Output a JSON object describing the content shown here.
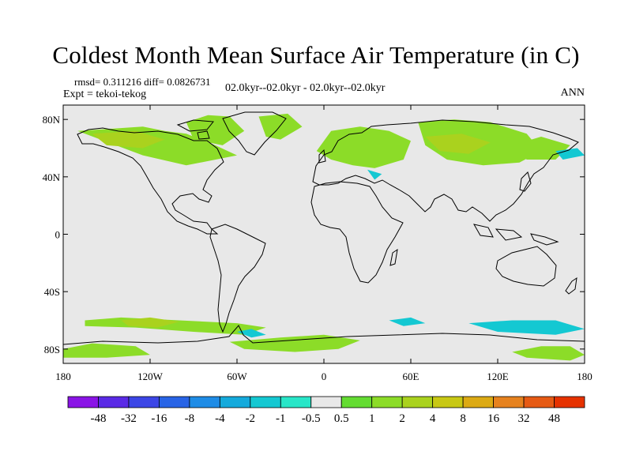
{
  "title": "Coldest Month Mean Surface Air Temperature (in C)",
  "stats": {
    "rmsd": "rmsd= 0.311216 diff= 0.0826731"
  },
  "expt": "Expt = tekoi-tekog",
  "period": "02.0kyr--02.0kyr - 02.0kyr--02.0kyr",
  "season": "ANN",
  "map": {
    "projection": "cylindrical-equidistant",
    "lon_range": [
      -180,
      180
    ],
    "lat_range": [
      -90,
      90
    ],
    "background_color": "#e8e8e8",
    "y_tick_labels": [
      {
        "lat": 80,
        "label": "80N"
      },
      {
        "lat": 40,
        "label": "40N"
      },
      {
        "lat": 0,
        "label": "0"
      },
      {
        "lat": -40,
        "label": "40S"
      },
      {
        "lat": -80,
        "label": "80S"
      }
    ],
    "x_tick_labels": [
      {
        "lon": -180,
        "label": "180"
      },
      {
        "lon": -120,
        "label": "120W"
      },
      {
        "lon": -60,
        "label": "60W"
      },
      {
        "lon": 0,
        "label": "0"
      },
      {
        "lon": 60,
        "label": "60E"
      },
      {
        "lon": 120,
        "label": "120E"
      },
      {
        "lon": 180,
        "label": "180"
      }
    ],
    "anomaly_regions": [
      {
        "level": "1",
        "lon": [
          -170,
          -125,
          -110,
          -95,
          -75,
          -60,
          -95,
          -125
        ],
        "lat": [
          72,
          75,
          72,
          70,
          62,
          55,
          48,
          55
        ]
      },
      {
        "level": "1",
        "lon": [
          -95,
          -80,
          -65,
          -55,
          -70,
          -90
        ],
        "lat": [
          78,
          83,
          82,
          72,
          62,
          66
        ]
      },
      {
        "level": "1",
        "lon": [
          -45,
          -25,
          -15,
          -30,
          -40
        ],
        "lat": [
          82,
          84,
          75,
          66,
          68
        ]
      },
      {
        "level": "1",
        "lon": [
          5,
          25,
          45,
          60,
          55,
          35,
          20,
          5,
          -5
        ],
        "lat": [
          72,
          75,
          72,
          65,
          52,
          46,
          48,
          52,
          58
        ]
      },
      {
        "level": "1",
        "lon": [
          65,
          90,
          115,
          140,
          150,
          135,
          110,
          85,
          70
        ],
        "lat": [
          78,
          80,
          78,
          70,
          58,
          50,
          48,
          52,
          62
        ]
      },
      {
        "level": "1",
        "lon": [
          130,
          150,
          170,
          160,
          140
        ],
        "lat": [
          62,
          68,
          62,
          52,
          52
        ]
      },
      {
        "level": "1",
        "lon": [
          -165,
          -140,
          -100,
          -60,
          -40,
          -55,
          -90,
          -130,
          -165
        ],
        "lat": [
          -60,
          -58,
          -60,
          -62,
          -65,
          -70,
          -68,
          -65,
          -64
        ]
      },
      {
        "level": "1",
        "lon": [
          -65,
          -30,
          0,
          25,
          10,
          -20,
          -55
        ],
        "lat": [
          -75,
          -72,
          -70,
          -74,
          -80,
          -82,
          -80
        ]
      },
      {
        "level": "1",
        "lon": [
          130,
          150,
          170,
          180,
          170,
          140
        ],
        "lat": [
          -82,
          -78,
          -78,
          -84,
          -88,
          -86
        ]
      },
      {
        "level": "1",
        "lon": [
          -180,
          -160,
          -130,
          -120,
          -150,
          -180
        ],
        "lat": [
          -80,
          -76,
          -78,
          -84,
          -86,
          -86
        ]
      },
      {
        "level": "2",
        "lon": [
          -160,
          -130,
          -110,
          -125,
          -150
        ],
        "lat": [
          70,
          72,
          66,
          60,
          62
        ]
      },
      {
        "level": "2",
        "lon": [
          70,
          95,
          115,
          100,
          80
        ],
        "lat": [
          68,
          70,
          64,
          56,
          58
        ]
      },
      {
        "level": "2",
        "lon": [
          -140,
          -120,
          -100,
          -115,
          -135
        ],
        "lat": [
          -60,
          -58,
          -61,
          -65,
          -64
        ]
      },
      {
        "level": "-1",
        "lon": [
          45,
          60,
          70,
          55
        ],
        "lat": [
          -60,
          -58,
          -62,
          -64
        ]
      },
      {
        "level": "-1",
        "lon": [
          100,
          130,
          160,
          180,
          160,
          120
        ],
        "lat": [
          -62,
          -60,
          -60,
          -66,
          -70,
          -68
        ]
      },
      {
        "level": "-1",
        "lon": [
          -60,
          -50,
          -40,
          -50
        ],
        "lat": [
          -68,
          -66,
          -70,
          -72
        ]
      },
      {
        "level": "-1",
        "lon": [
          30,
          40,
          35
        ],
        "lat": [
          45,
          42,
          38
        ]
      },
      {
        "level": "-1",
        "lon": [
          160,
          175,
          180,
          165
        ],
        "lat": [
          58,
          60,
          55,
          52
        ]
      }
    ]
  },
  "colorbar": {
    "labels": [
      "-48",
      "-32",
      "-16",
      "-8",
      "-4",
      "-2",
      "-1",
      "-0.5",
      "0.5",
      "1",
      "2",
      "4",
      "8",
      "16",
      "32",
      "48"
    ],
    "colors": [
      "#8a14e6",
      "#5a2ae6",
      "#3c46e6",
      "#2864e6",
      "#1e8ce6",
      "#14aadc",
      "#14c8d2",
      "#28e6c8",
      "#e8e8e8",
      "#64dc32",
      "#8cdc28",
      "#aad21e",
      "#c8c814",
      "#dcaa14",
      "#e6821e",
      "#e65a14",
      "#e63200"
    ]
  }
}
